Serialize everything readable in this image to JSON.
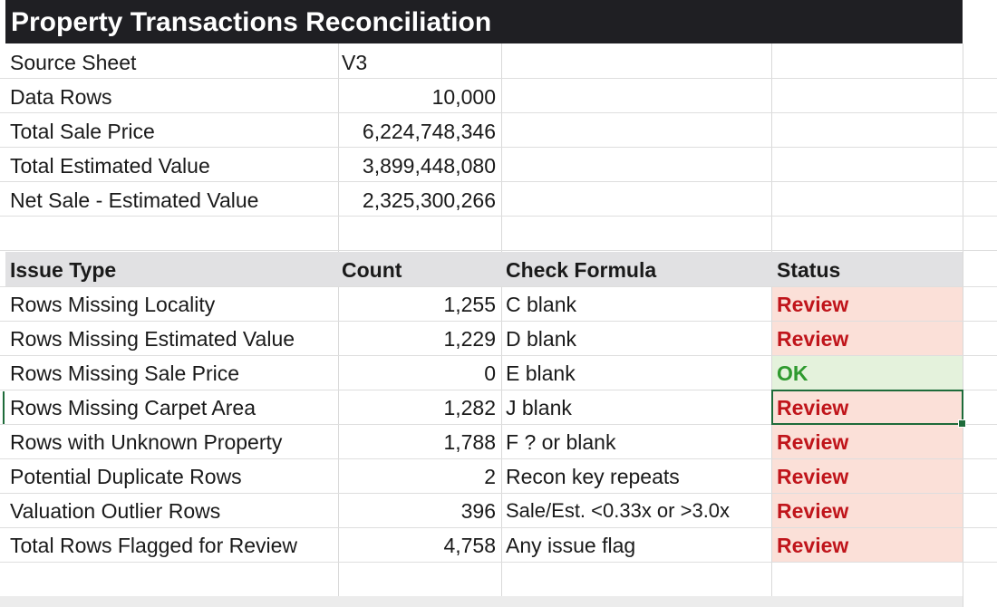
{
  "title": "Property Transactions Reconciliation",
  "summary": [
    {
      "label": "Source Sheet",
      "value": "V3",
      "align": "left"
    },
    {
      "label": "Data Rows",
      "value": "10,000",
      "align": "right"
    },
    {
      "label": "Total Sale Price",
      "value": "6,224,748,346",
      "align": "right"
    },
    {
      "label": "Total Estimated Value",
      "value": "3,899,448,080",
      "align": "right"
    },
    {
      "label": "Net Sale - Estimated Value",
      "value": "2,325,300,266",
      "align": "right"
    }
  ],
  "table": {
    "headers": {
      "issue_type": "Issue Type",
      "count": "Count",
      "check_formula": "Check Formula",
      "status": "Status"
    },
    "rows": [
      {
        "issue": "Rows Missing Locality",
        "count": "1,255",
        "formula": "C blank",
        "status": "Review"
      },
      {
        "issue": "Rows Missing Estimated Value",
        "count": "1,229",
        "formula": "D blank",
        "status": "Review"
      },
      {
        "issue": "Rows Missing Sale Price",
        "count": "0",
        "formula": "E blank",
        "status": "OK"
      },
      {
        "issue": "Rows Missing Carpet Area",
        "count": "1,282",
        "formula": "J blank",
        "status": "Review"
      },
      {
        "issue": "Rows with Unknown Property",
        "count": "1,788",
        "formula": "F ? or blank",
        "status": "Review"
      },
      {
        "issue": "Potential Duplicate Rows",
        "count": "2",
        "formula": "Recon key repeats",
        "status": "Review"
      },
      {
        "issue": "Valuation Outlier Rows",
        "count": "396",
        "formula": "Sale/Est. <0.33x or >3.0x",
        "status": "Review"
      },
      {
        "issue": "Total Rows Flagged for Review",
        "count": "4,758",
        "formula": "Any issue flag",
        "status": "Review"
      }
    ]
  },
  "colors": {
    "title_bg": "#1f1f23",
    "header_bg": "#e1e1e3",
    "review_fill": "#fbe0d8",
    "review_text": "#c0151b",
    "ok_fill": "#e4f2dc",
    "ok_text": "#2f9a2f",
    "selection": "#1e6b3a"
  },
  "selected_cell": "Status of Rows Missing Carpet Area"
}
